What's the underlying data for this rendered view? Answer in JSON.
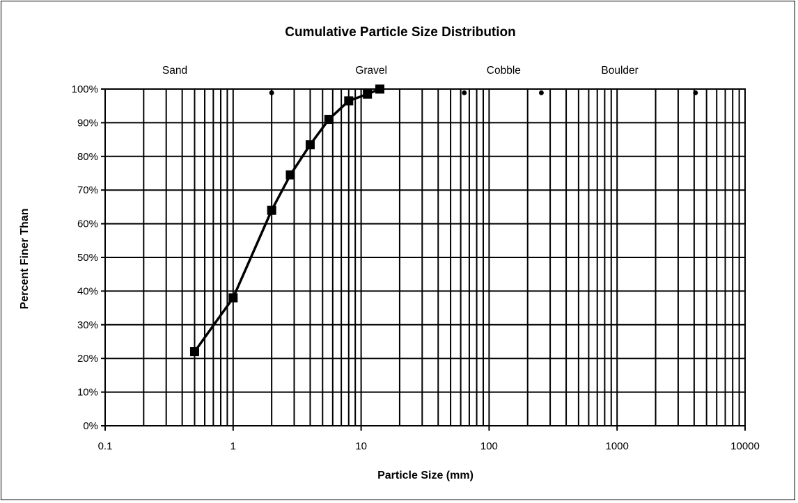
{
  "chart_data": {
    "type": "line",
    "title": "Cumulative Particle Size Distribution",
    "xlabel": "Particle Size (mm)",
    "ylabel": "Percent Finer Than",
    "x_scale": "log",
    "xlim": [
      0.1,
      10000
    ],
    "ylim": [
      0,
      100
    ],
    "x_ticks": [
      "0.1",
      "1",
      "10",
      "100",
      "1000",
      "10000"
    ],
    "y_ticks": [
      "0%",
      "10%",
      "20%",
      "30%",
      "40%",
      "50%",
      "60%",
      "70%",
      "80%",
      "90%",
      "100%"
    ],
    "grid": true,
    "line_color": "#000000",
    "series": [
      {
        "marker": "square",
        "x": [
          0.5,
          1,
          2,
          2.8,
          4,
          5.6,
          8,
          11.2,
          14
        ],
        "y": [
          22,
          38,
          64,
          74.5,
          83.5,
          91,
          96.5,
          98.5,
          100
        ]
      }
    ],
    "class_markers": {
      "marker": "dot",
      "x": [
        2,
        64,
        256,
        4096
      ],
      "y": [
        99.5,
        99.5,
        99.5,
        99.5
      ]
    },
    "class_labels": [
      {
        "text": "Sand",
        "x": 0.35
      },
      {
        "text": "Gravel",
        "x": 12
      },
      {
        "text": "Cobble",
        "x": 130
      },
      {
        "text": "Boulder",
        "x": 1050
      }
    ]
  }
}
